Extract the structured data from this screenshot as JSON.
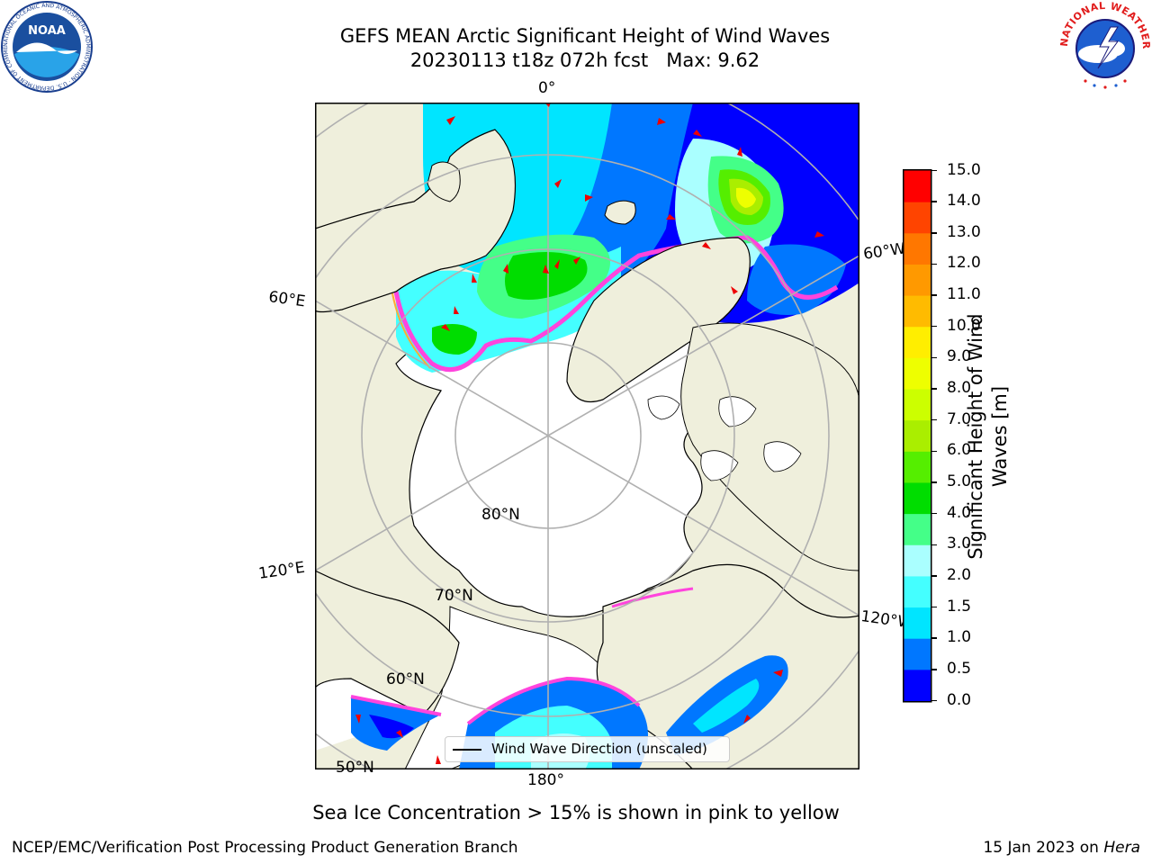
{
  "header": {
    "title_line1": "GEFS MEAN Arctic Significant Height of Wind Waves",
    "title_line2": "20230113 t18z 072h fcst   Max: 9.62"
  },
  "logos": {
    "noaa_text": "NOAA",
    "noaa_ring_text": "NATIONAL OCEANIC AND ATMOSPHERIC ADMINISTRATION · U.S. DEPARTMENT OF COMMERCE ·",
    "nws_ring_text": "NATIONAL WEATHER SERVICE"
  },
  "map": {
    "labels": {
      "lon_0": "0°",
      "lon_60w": "60°W",
      "lon_60e": "60°E",
      "lon_120e": "120°E",
      "lon_120w": "120°W",
      "lon_180": "180°",
      "lat_80": "80°N",
      "lat_70": "70°N",
      "lat_60": "60°N",
      "lat_50": "50°N"
    },
    "legend_label": "Wind Wave Direction (unscaled)",
    "colors": {
      "land": "#efefdc",
      "ice_edge": "#ff44dd",
      "grid": "#b0b0b0",
      "arrow": "#ee0000"
    }
  },
  "colorbar": {
    "label_line1": "Significant Height of Wind",
    "label_line2": "Waves [m]",
    "ticks": [
      "0.0",
      "0.5",
      "1.0",
      "1.5",
      "2.0",
      "3.0",
      "4.0",
      "5.0",
      "6.0",
      "7.0",
      "8.0",
      "9.0",
      "10.0",
      "11.0",
      "12.0",
      "13.0",
      "14.0",
      "15.0"
    ],
    "colors": [
      "#0000ff",
      "#0077ff",
      "#00e5ff",
      "#44ffff",
      "#aaffff",
      "#44ff88",
      "#00dd00",
      "#55ee00",
      "#aaee00",
      "#ccff00",
      "#eeff00",
      "#ffee00",
      "#ffbb00",
      "#ff9900",
      "#ff7700",
      "#ff4400",
      "#ff0000"
    ]
  },
  "caption": "Sea Ice Concentration > 15% is shown in pink to yellow",
  "footer": {
    "left": "NCEP/EMC/Verification Post Processing Product Generation Branch",
    "right_prefix": "15 Jan 2023 on ",
    "right_machine": "Hera"
  }
}
